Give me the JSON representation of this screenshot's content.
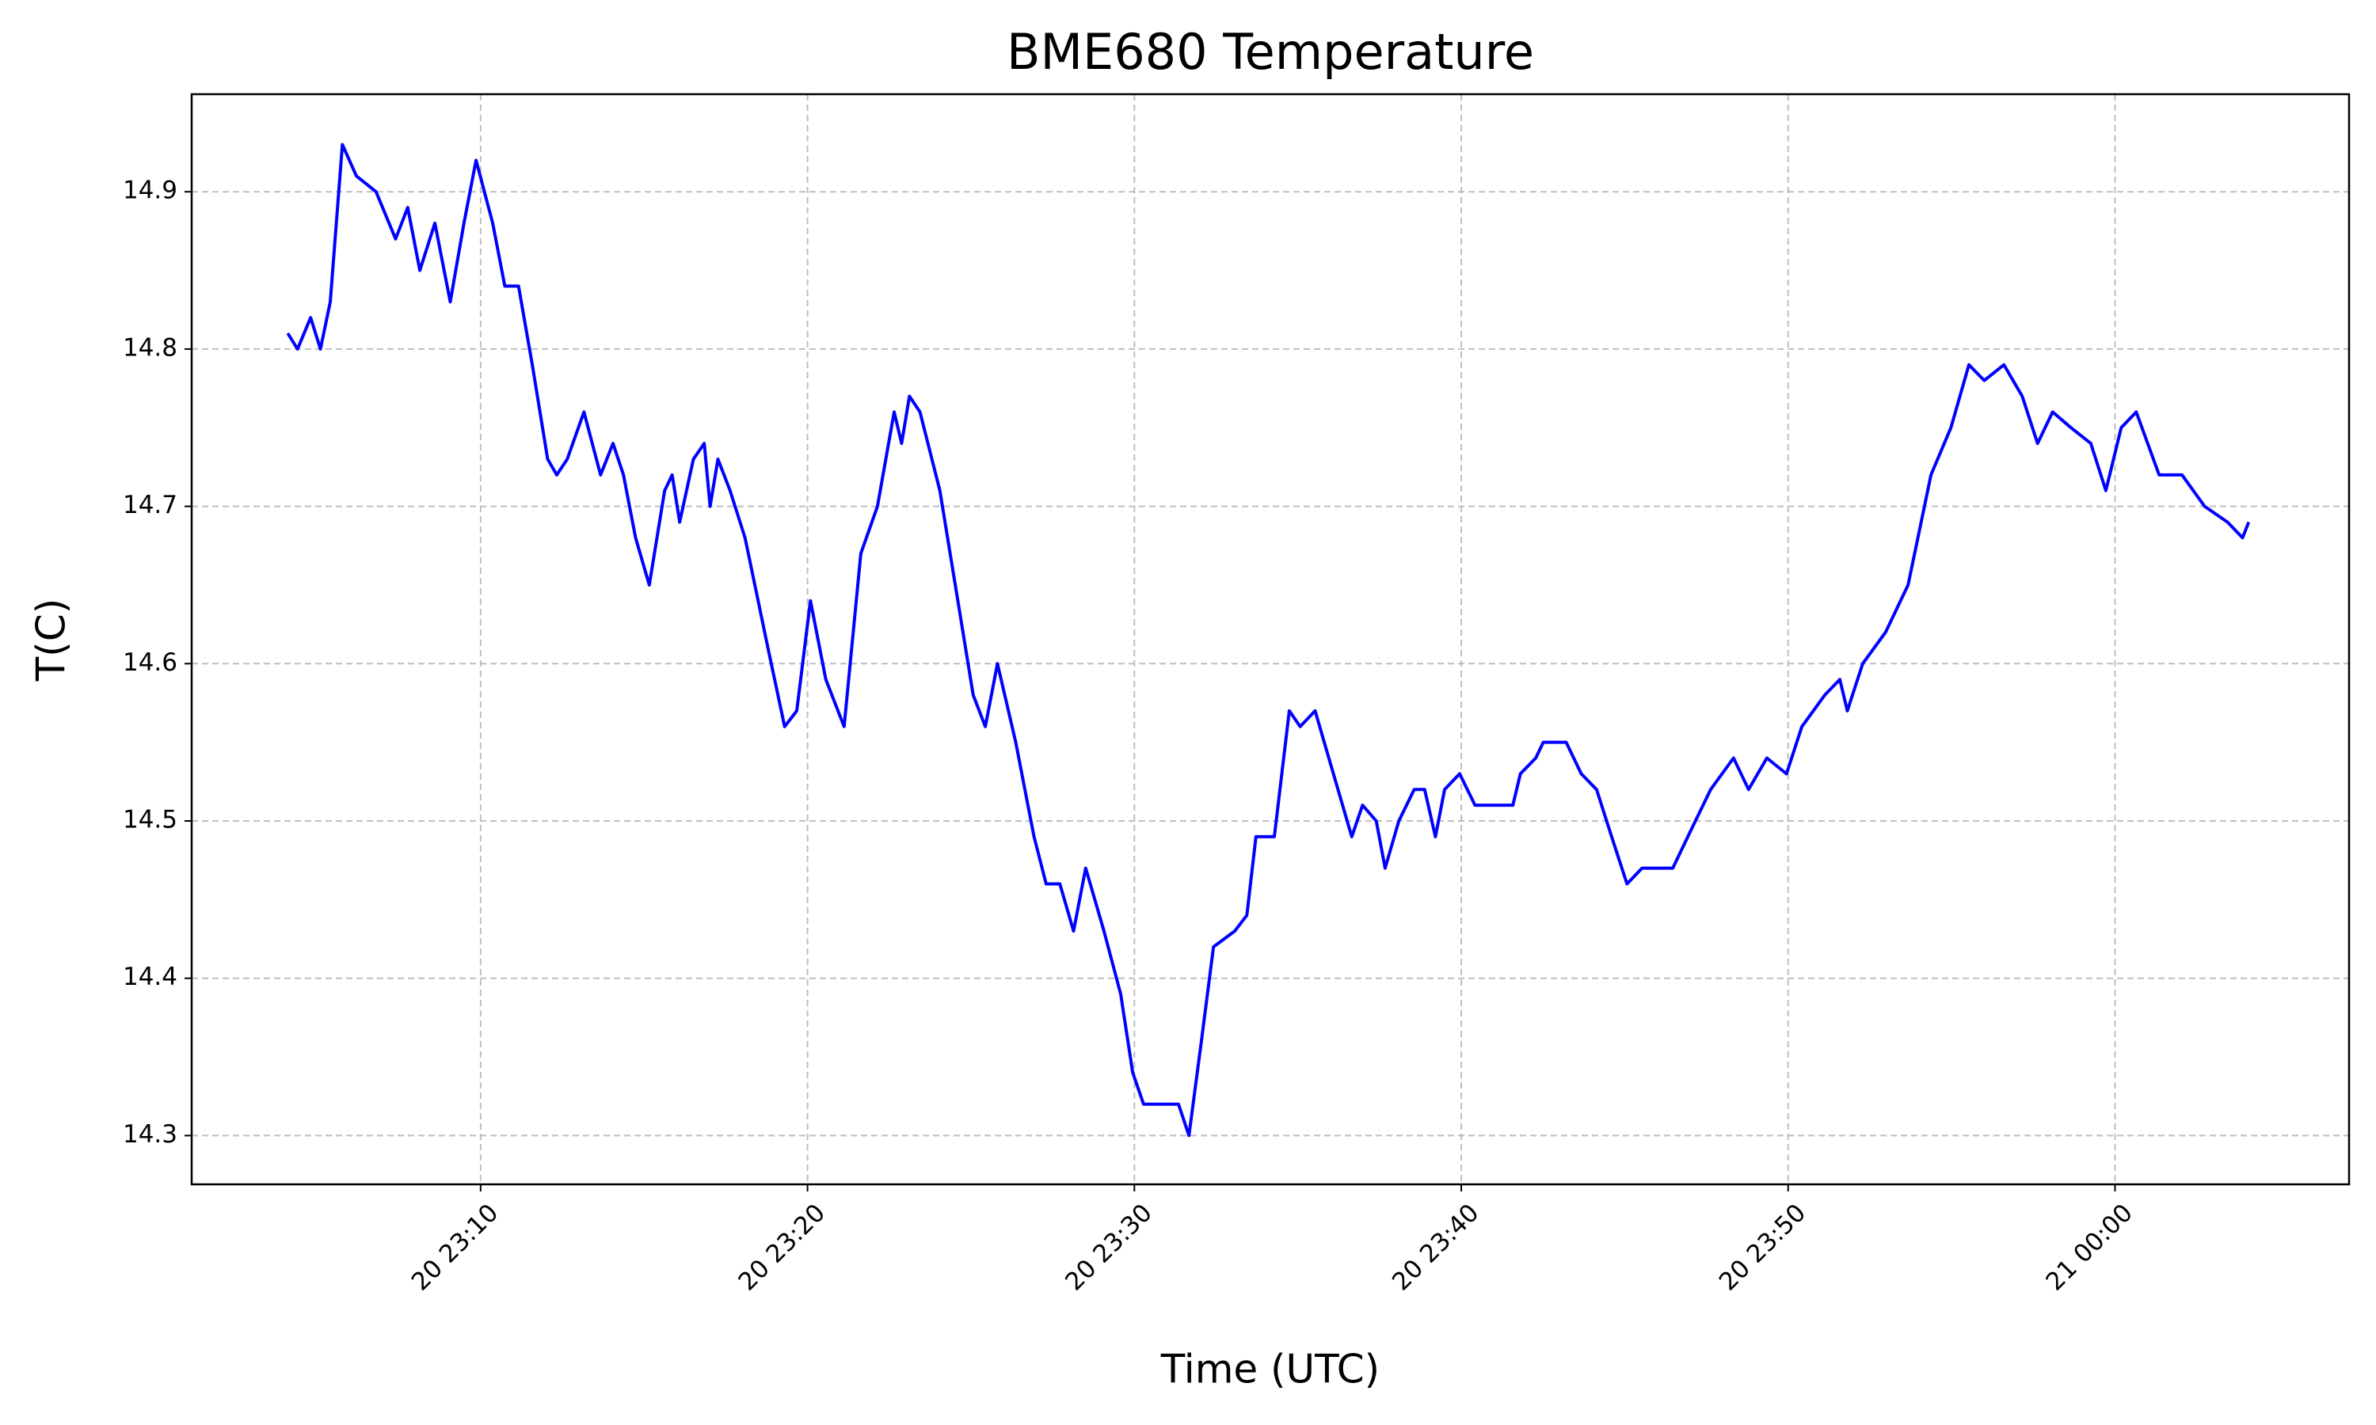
{
  "chart_data": {
    "type": "line",
    "title": "BME680 Temperature",
    "x_label": "Time (UTC)",
    "y_label": "T(C)",
    "grid": true,
    "xlim": [
      1.16,
      67.16
    ],
    "ylim": [
      14.269,
      14.962
    ],
    "xticks": [
      {
        "value": 10,
        "label": "20 23:10"
      },
      {
        "value": 20,
        "label": "20 23:20"
      },
      {
        "value": 30,
        "label": "20 23:30"
      },
      {
        "value": 40,
        "label": "20 23:40"
      },
      {
        "value": 50,
        "label": "20 23:50"
      },
      {
        "value": 60,
        "label": "21 00:00"
      }
    ],
    "yticks": [
      14.3,
      14.4,
      14.5,
      14.6,
      14.7,
      14.8,
      14.9
    ],
    "series": [
      {
        "name": "BME680 Temperature",
        "color": "#0000ff",
        "x": [
          4.1,
          4.4,
          4.8,
          5.1,
          5.4,
          5.77,
          6.2,
          6.8,
          7.4,
          7.77,
          8.14,
          8.6,
          9.07,
          9.49,
          9.86,
          10.37,
          10.74,
          11.16,
          11.58,
          12.05,
          12.33,
          12.65,
          13.16,
          13.67,
          14.05,
          14.37,
          14.74,
          15.16,
          15.63,
          15.86,
          16.09,
          16.51,
          16.84,
          17.02,
          17.26,
          17.63,
          18.09,
          18.79,
          19.3,
          19.67,
          20.09,
          20.56,
          21.12,
          21.63,
          22.14,
          22.65,
          22.88,
          23.12,
          23.44,
          24.05,
          24.6,
          25.07,
          25.44,
          25.81,
          26.37,
          26.93,
          27.3,
          27.72,
          28.14,
          28.51,
          29.07,
          29.58,
          29.95,
          30.28,
          31.35,
          31.67,
          32.05,
          32.42,
          33.07,
          33.44,
          33.72,
          34.28,
          34.74,
          35.07,
          35.53,
          36.23,
          36.65,
          36.98,
          37.4,
          37.67,
          38.09,
          38.56,
          38.88,
          39.21,
          39.49,
          39.95,
          40.42,
          41.58,
          41.81,
          42.28,
          42.51,
          43.21,
          43.67,
          44.14,
          44.6,
          45.07,
          45.53,
          46.47,
          46.93,
          47.63,
          48.33,
          48.79,
          49.35,
          49.95,
          50.42,
          51.12,
          51.58,
          51.81,
          52.28,
          52.98,
          53.67,
          54.37,
          54.98,
          55.53,
          56.0,
          56.6,
          57.16,
          57.63,
          58.09,
          58.65,
          59.26,
          59.72,
          60.19,
          60.65,
          61.35,
          62.05,
          62.74,
          63.44,
          63.9,
          64.09
        ],
        "values": [
          14.81,
          14.8,
          14.82,
          14.8,
          14.83,
          14.93,
          14.91,
          14.9,
          14.87,
          14.89,
          14.85,
          14.88,
          14.83,
          14.88,
          14.92,
          14.88,
          14.84,
          14.84,
          14.79,
          14.73,
          14.72,
          14.73,
          14.76,
          14.72,
          14.74,
          14.72,
          14.68,
          14.65,
          14.71,
          14.72,
          14.69,
          14.73,
          14.74,
          14.7,
          14.73,
          14.71,
          14.68,
          14.61,
          14.56,
          14.57,
          14.64,
          14.59,
          14.56,
          14.67,
          14.7,
          14.76,
          14.74,
          14.77,
          14.76,
          14.71,
          14.64,
          14.58,
          14.56,
          14.6,
          14.55,
          14.49,
          14.46,
          14.46,
          14.43,
          14.47,
          14.43,
          14.39,
          14.34,
          14.32,
          14.32,
          14.3,
          14.36,
          14.42,
          14.43,
          14.44,
          14.49,
          14.49,
          14.57,
          14.56,
          14.57,
          14.52,
          14.49,
          14.51,
          14.5,
          14.47,
          14.5,
          14.52,
          14.52,
          14.49,
          14.52,
          14.53,
          14.51,
          14.51,
          14.53,
          14.54,
          14.55,
          14.55,
          14.53,
          14.52,
          14.49,
          14.46,
          14.47,
          14.47,
          14.49,
          14.52,
          14.54,
          14.52,
          14.54,
          14.53,
          14.56,
          14.58,
          14.59,
          14.57,
          14.6,
          14.62,
          14.65,
          14.72,
          14.75,
          14.79,
          14.78,
          14.79,
          14.77,
          14.74,
          14.76,
          14.75,
          14.74,
          14.71,
          14.75,
          14.76,
          14.72,
          14.72,
          14.7,
          14.69,
          14.68,
          14.69
        ]
      }
    ]
  }
}
